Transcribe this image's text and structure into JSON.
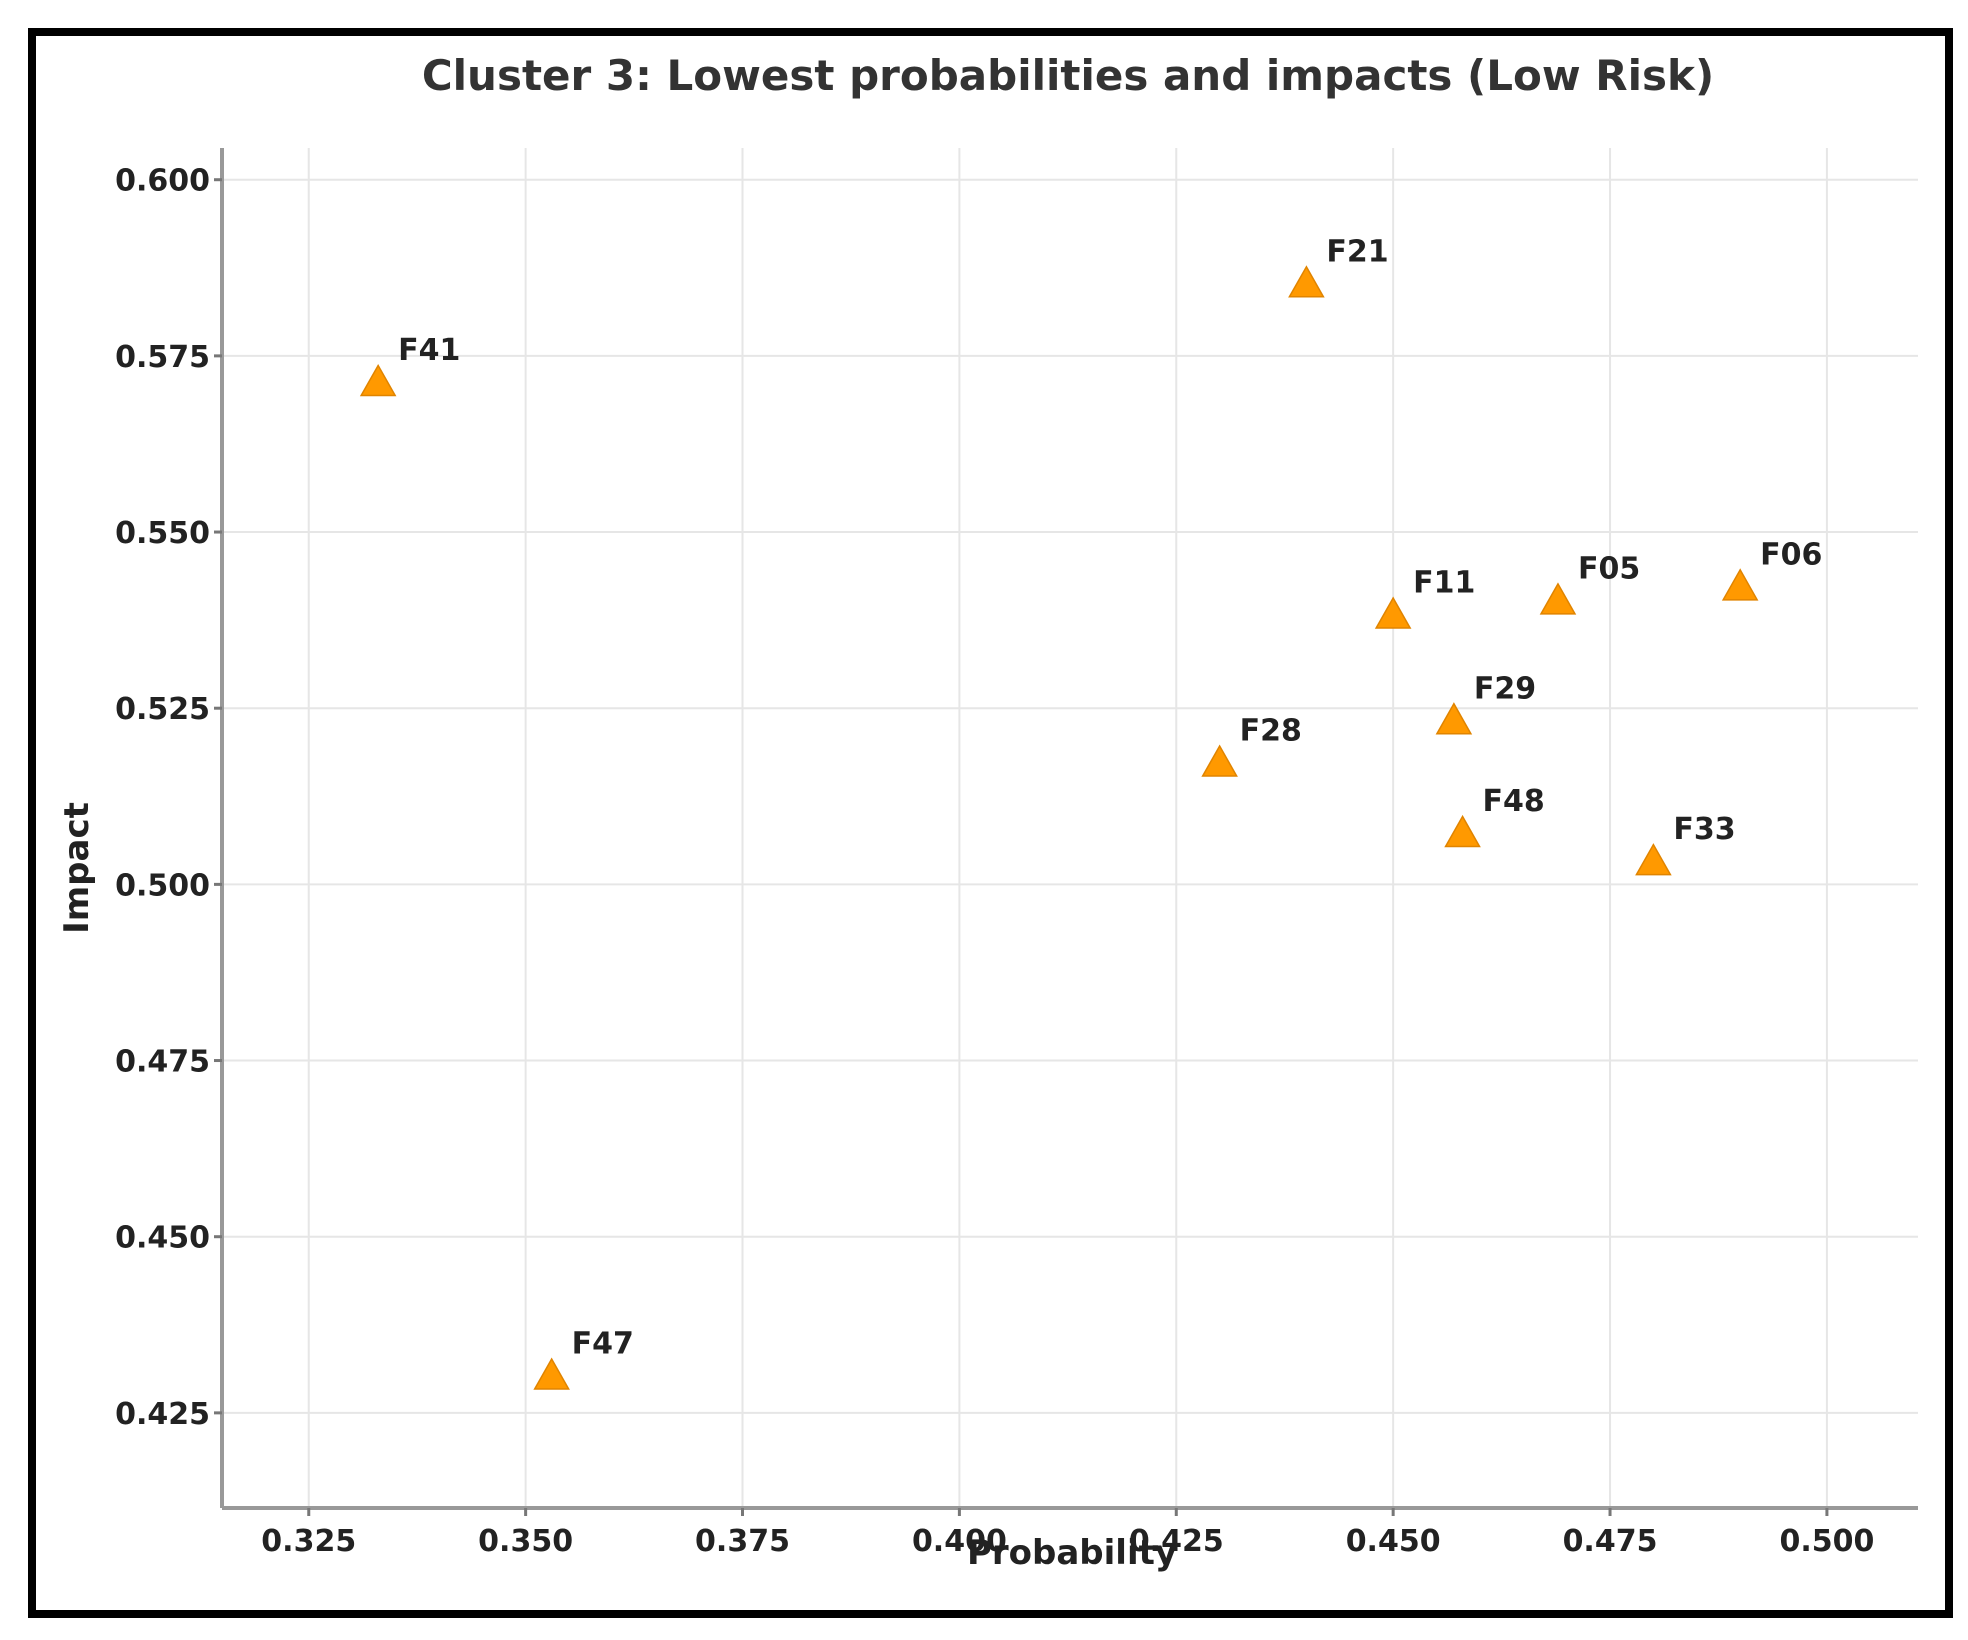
{
  "chart_data": {
    "type": "scatter",
    "title": "Cluster 3: Lowest probabilities and impacts (Low Risk)",
    "xlabel": "Probability",
    "ylabel": "Impact",
    "xlim": [
      0.315,
      0.5105
    ],
    "ylim": [
      0.4115,
      0.6045
    ],
    "xticks": [
      0.325,
      0.35,
      0.375,
      0.4,
      0.425,
      0.45,
      0.475,
      0.5
    ],
    "xtick_labels": [
      "0.325",
      "0.350",
      "0.375",
      "0.400",
      "0.425",
      "0.450",
      "0.475",
      "0.500"
    ],
    "yticks": [
      0.425,
      0.45,
      0.475,
      0.5,
      0.525,
      0.55,
      0.575,
      0.6
    ],
    "ytick_labels": [
      "0.425",
      "0.450",
      "0.475",
      "0.500",
      "0.525",
      "0.550",
      "0.575",
      "0.600"
    ],
    "grid": true,
    "marker": "triangle",
    "marker_color": "#ff9900",
    "points": [
      {
        "label": "F41",
        "x": 0.333,
        "y": 0.571
      },
      {
        "label": "F47",
        "x": 0.353,
        "y": 0.43
      },
      {
        "label": "F21",
        "x": 0.44,
        "y": 0.585
      },
      {
        "label": "F11",
        "x": 0.45,
        "y": 0.538
      },
      {
        "label": "F05",
        "x": 0.469,
        "y": 0.54
      },
      {
        "label": "F06",
        "x": 0.49,
        "y": 0.542
      },
      {
        "label": "F29",
        "x": 0.457,
        "y": 0.523
      },
      {
        "label": "F28",
        "x": 0.43,
        "y": 0.517
      },
      {
        "label": "F48",
        "x": 0.458,
        "y": 0.507
      },
      {
        "label": "F33",
        "x": 0.48,
        "y": 0.503
      }
    ]
  }
}
